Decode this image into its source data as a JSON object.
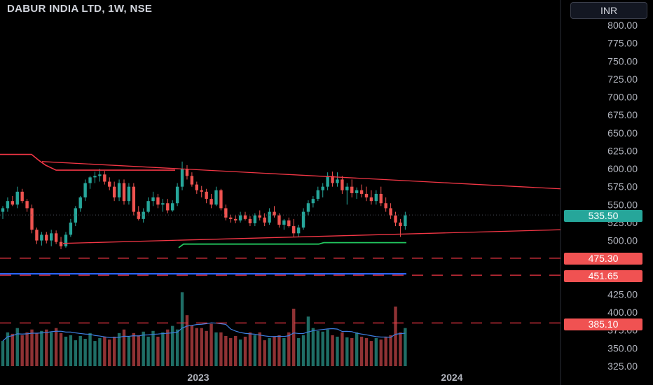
{
  "header": {
    "title": "DABUR INDIA LTD, 1W, NSE",
    "currency": "INR"
  },
  "price_labels": {
    "current": "535.50",
    "level_1": "475.30",
    "level_2": "451.65",
    "level_3": "385.10"
  },
  "colors": {
    "up": "#26a69a",
    "down": "#ef5350",
    "vol_up": "#1f6e66",
    "vol_down": "#8f3234",
    "support": "#22c55e",
    "trend": "#f23645",
    "blue_line": "#2962ff",
    "vol_ma": "#3d7ee0"
  },
  "chart_data": {
    "type": "candlestick",
    "title": "DABUR INDIA LTD, 1W, NSE",
    "y_ticks": [
      800,
      775,
      750,
      725,
      700,
      675,
      650,
      625,
      600,
      575,
      550,
      525,
      500,
      425,
      400,
      375,
      350,
      325
    ],
    "ylim": [
      320,
      810
    ],
    "x_ticks": [
      "2023",
      "2024"
    ],
    "candles": [
      [
        540,
        548,
        530,
        545
      ],
      [
        545,
        560,
        540,
        555
      ],
      [
        555,
        562,
        548,
        550
      ],
      [
        550,
        575,
        545,
        568
      ],
      [
        568,
        572,
        552,
        555
      ],
      [
        555,
        558,
        540,
        545
      ],
      [
        545,
        550,
        510,
        515
      ],
      [
        515,
        518,
        495,
        500
      ],
      [
        500,
        512,
        493,
        508
      ],
      [
        508,
        512,
        496,
        500
      ],
      [
        500,
        515,
        492,
        510
      ],
      [
        510,
        514,
        495,
        498
      ],
      [
        498,
        505,
        488,
        492
      ],
      [
        492,
        512,
        490,
        508
      ],
      [
        508,
        530,
        505,
        525
      ],
      [
        525,
        548,
        520,
        545
      ],
      [
        545,
        562,
        540,
        560
      ],
      [
        560,
        585,
        555,
        580
      ],
      [
        580,
        590,
        572,
        588
      ],
      [
        588,
        596,
        580,
        590
      ],
      [
        590,
        600,
        582,
        592
      ],
      [
        592,
        597,
        578,
        582
      ],
      [
        582,
        588,
        570,
        575
      ],
      [
        575,
        582,
        555,
        560
      ],
      [
        560,
        585,
        555,
        580
      ],
      [
        580,
        585,
        550,
        555
      ],
      [
        555,
        580,
        550,
        575
      ],
      [
        575,
        580,
        535,
        540
      ],
      [
        540,
        548,
        528,
        530
      ],
      [
        530,
        545,
        525,
        540
      ],
      [
        540,
        560,
        538,
        555
      ],
      [
        555,
        568,
        548,
        560
      ],
      [
        560,
        565,
        545,
        550
      ],
      [
        550,
        558,
        540,
        552
      ],
      [
        552,
        558,
        538,
        542
      ],
      [
        542,
        556,
        540,
        552
      ],
      [
        552,
        580,
        548,
        575
      ],
      [
        575,
        610,
        570,
        600
      ],
      [
        600,
        605,
        585,
        590
      ],
      [
        590,
        595,
        575,
        578
      ],
      [
        578,
        582,
        565,
        570
      ],
      [
        570,
        576,
        560,
        568
      ],
      [
        568,
        572,
        552,
        558
      ],
      [
        558,
        565,
        545,
        550
      ],
      [
        550,
        575,
        548,
        570
      ],
      [
        570,
        572,
        542,
        545
      ],
      [
        545,
        550,
        528,
        532
      ],
      [
        532,
        536,
        525,
        530
      ],
      [
        530,
        535,
        524,
        528
      ],
      [
        528,
        540,
        525,
        535
      ],
      [
        535,
        540,
        528,
        530
      ],
      [
        530,
        534,
        520,
        524
      ],
      [
        524,
        538,
        520,
        535
      ],
      [
        535,
        542,
        528,
        532
      ],
      [
        532,
        538,
        520,
        525
      ],
      [
        525,
        545,
        522,
        540
      ],
      [
        540,
        548,
        532,
        535
      ],
      [
        535,
        538,
        518,
        522
      ],
      [
        522,
        530,
        515,
        528
      ],
      [
        528,
        532,
        518,
        520
      ],
      [
        520,
        530,
        505,
        510
      ],
      [
        510,
        522,
        505,
        518
      ],
      [
        518,
        545,
        515,
        540
      ],
      [
        540,
        556,
        535,
        552
      ],
      [
        552,
        562,
        546,
        558
      ],
      [
        558,
        575,
        555,
        570
      ],
      [
        570,
        580,
        560,
        575
      ],
      [
        575,
        595,
        570,
        590
      ],
      [
        590,
        596,
        575,
        580
      ],
      [
        580,
        595,
        575,
        585
      ],
      [
        585,
        590,
        565,
        570
      ],
      [
        570,
        580,
        550,
        575
      ],
      [
        575,
        585,
        560,
        566
      ],
      [
        566,
        574,
        558,
        570
      ],
      [
        570,
        578,
        560,
        565
      ],
      [
        565,
        575,
        555,
        560
      ],
      [
        560,
        570,
        550,
        555
      ],
      [
        555,
        570,
        550,
        565
      ],
      [
        565,
        575,
        548,
        552
      ],
      [
        552,
        560,
        540,
        545
      ],
      [
        545,
        552,
        530,
        535
      ],
      [
        535,
        540,
        520,
        525
      ],
      [
        525,
        530,
        505,
        520
      ],
      [
        520,
        540,
        515,
        535
      ]
    ],
    "volume": [
      360,
      372,
      370,
      378,
      368,
      372,
      376,
      371,
      374,
      376,
      372,
      378,
      371,
      366,
      368,
      361,
      367,
      363,
      371,
      360,
      364,
      366,
      362,
      366,
      371,
      376,
      366,
      371,
      368,
      373,
      366,
      374,
      366,
      372,
      376,
      381,
      376,
      428,
      396,
      382,
      378,
      378,
      374,
      384,
      372,
      372,
      367,
      364,
      367,
      362,
      366,
      372,
      368,
      372,
      361,
      364,
      366,
      368,
      364,
      372,
      405,
      364,
      368,
      394,
      378,
      374,
      373,
      376,
      368,
      366,
      372,
      365,
      364,
      372,
      366,
      364,
      360,
      364,
      362,
      366,
      368,
      408,
      372,
      378
    ],
    "levels": [
      475.3,
      451.65,
      385.1
    ],
    "current_price": 535.5
  }
}
